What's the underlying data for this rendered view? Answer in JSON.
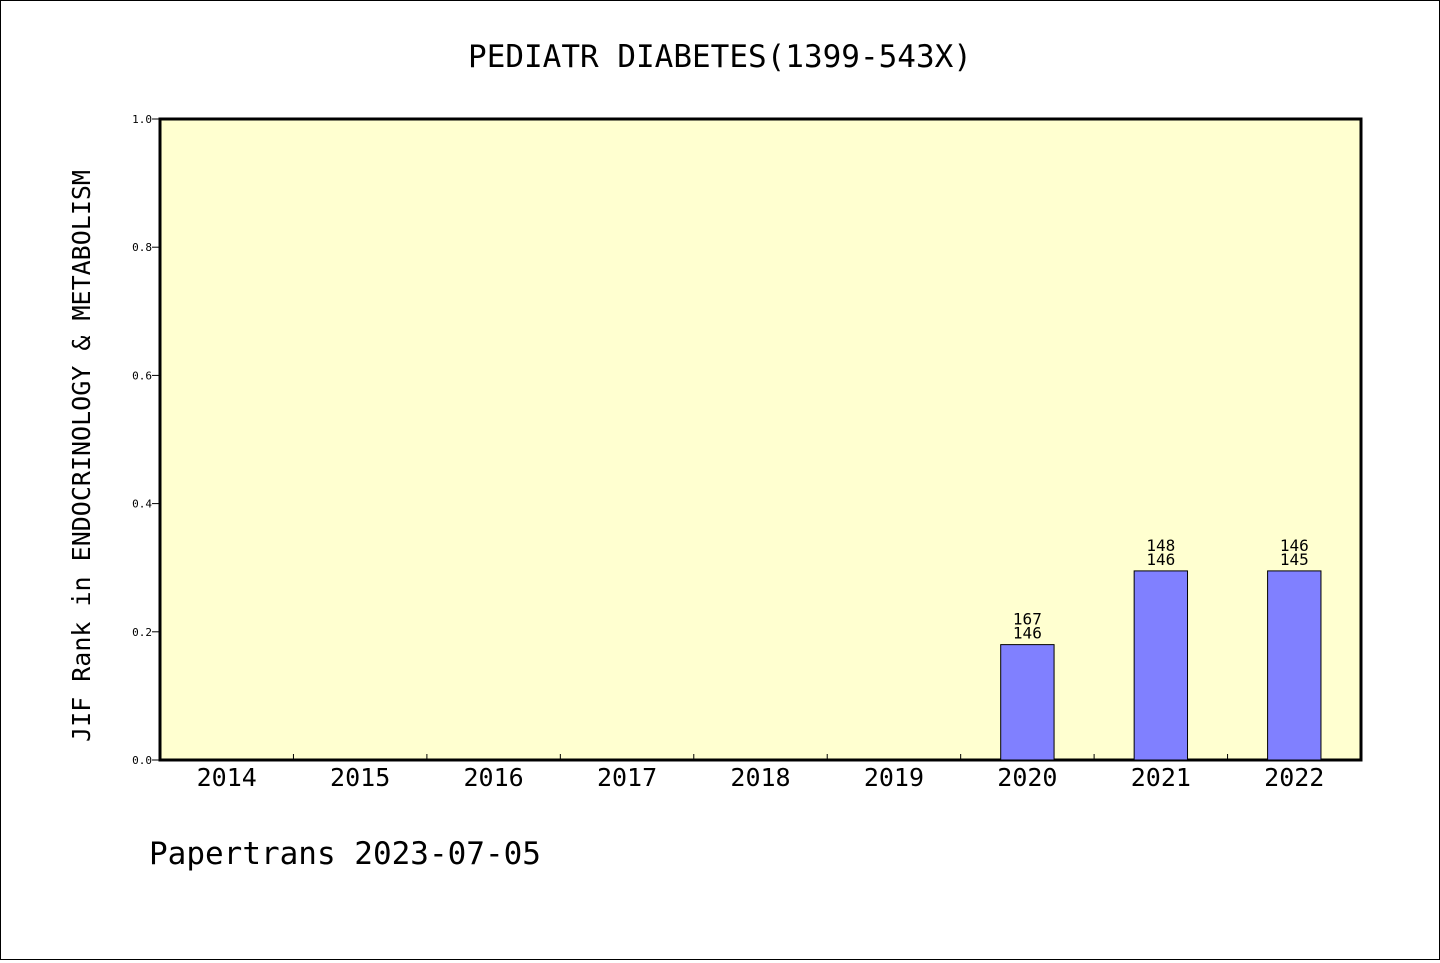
{
  "chart_data": {
    "type": "bar",
    "title": "PEDIATR DIABETES(1399-543X)",
    "ylabel": "JIF Rank in ENDOCRINOLOGY & METABOLISM",
    "xlabel": "",
    "categories": [
      "2014",
      "2015",
      "2016",
      "2017",
      "2018",
      "2019",
      "2020",
      "2021",
      "2022"
    ],
    "values": [
      null,
      null,
      null,
      null,
      null,
      null,
      0.18,
      0.295,
      0.295
    ],
    "rank_labels": [
      null,
      null,
      null,
      null,
      null,
      null,
      [
        "167",
        "146"
      ],
      [
        "148",
        "146"
      ],
      [
        "146",
        "145"
      ]
    ],
    "ylim": [
      0,
      1.0
    ],
    "yticks": [
      "0.0",
      "0.2",
      "0.4",
      "0.6",
      "0.8",
      "1.0"
    ],
    "ytick_values": [
      0,
      0.2,
      0.4,
      0.6,
      0.8,
      1.0
    ],
    "grid": false,
    "legend": "none",
    "colors": {
      "plot_background": "#ffffd0",
      "bar_fill": "#8080ff",
      "bar_stroke": "#000000"
    }
  },
  "footer": {
    "credit": "Papertrans 2023-07-05"
  }
}
